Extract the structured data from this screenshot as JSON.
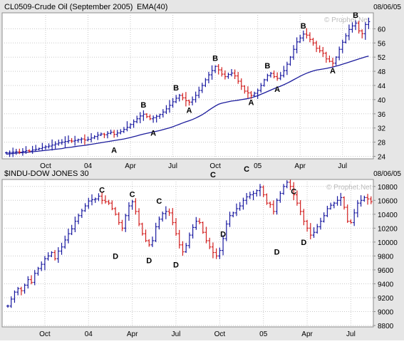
{
  "colors": {
    "background": "#e6e6e6",
    "plot_bg": "#ffffff",
    "grid": "#c8c8c8",
    "frame": "#8c8c8c",
    "up_bar": "#1a1aa0",
    "down_bar": "#d22020",
    "ema_line": "#1c1c9c",
    "watermark": "#bdbdbd",
    "text": "#000000"
  },
  "watermark": "© Prophet.Net",
  "chart_data": [
    {
      "type": "ohlc-bar",
      "title": "CL0509-Crude Oil (September 2005)",
      "indicator_label": "EMA(40)",
      "date_label": "08/06/05",
      "x_tick_labels": [
        "Oct",
        "04",
        "Apr",
        "Jul",
        "Oct",
        "05",
        "Apr",
        "Jul"
      ],
      "x_tick_index": [
        12,
        25,
        38,
        51,
        64,
        77,
        90,
        103
      ],
      "y_tick_labels": [
        "24",
        "28",
        "32",
        "36",
        "40",
        "44",
        "48",
        "52",
        "56",
        "60"
      ],
      "y_ticks": [
        24,
        28,
        32,
        36,
        40,
        44,
        48,
        52,
        56,
        60
      ],
      "ylim": [
        23.3,
        64.5
      ],
      "grid": true,
      "close": [
        25.0,
        25.1,
        25.2,
        25.3,
        25.2,
        25.4,
        25.6,
        25.5,
        25.8,
        26.0,
        26.2,
        26.5,
        26.7,
        26.9,
        27.2,
        27.5,
        27.8,
        28.0,
        28.2,
        28.4,
        28.3,
        28.5,
        28.7,
        28.9,
        28.6,
        28.8,
        29.2,
        29.6,
        30.0,
        30.3,
        30.1,
        30.5,
        30.8,
        30.2,
        30.6,
        31.0,
        31.6,
        32.2,
        33.0,
        33.8,
        34.6,
        35.4,
        35.9,
        35.2,
        34.6,
        34.9,
        35.3,
        35.8,
        36.5,
        37.4,
        38.4,
        39.4,
        40.4,
        41.2,
        40.5,
        39.7,
        39.3,
        40.0,
        41.2,
        42.6,
        44.0,
        45.6,
        47.0,
        48.2,
        49.4,
        48.4,
        47.2,
        46.5,
        47.1,
        47.5,
        46.7,
        45.2,
        43.8,
        42.4,
        41.9,
        41.2,
        41.8,
        42.6,
        44.0,
        45.6,
        46.8,
        47.4,
        46.5,
        46.0,
        46.8,
        48.2,
        50.0,
        52.0,
        54.2,
        56.3,
        57.4,
        58.5,
        58.2,
        57.0,
        56.0,
        54.5,
        53.8,
        53.1,
        51.5,
        50.8,
        50.3,
        52.0,
        54.2,
        56.2,
        58.0,
        59.8,
        60.8,
        61.6,
        59.4,
        58.6,
        61.2,
        62.0
      ],
      "ema": [
        24.6,
        24.7,
        24.8,
        24.9,
        25.0,
        25.05,
        25.1,
        25.2,
        25.3,
        25.4,
        25.5,
        25.6,
        25.7,
        25.8,
        25.9,
        26.0,
        26.1,
        26.2,
        26.4,
        26.5,
        26.6,
        26.75,
        26.9,
        27.0,
        27.1,
        27.25,
        27.4,
        27.55,
        27.7,
        27.85,
        28.0,
        28.15,
        28.3,
        28.45,
        28.6,
        28.75,
        28.9,
        29.1,
        29.3,
        29.55,
        29.8,
        30.05,
        30.3,
        30.5,
        30.7,
        30.9,
        31.1,
        31.3,
        31.55,
        31.8,
        32.05,
        32.35,
        32.7,
        33.05,
        33.4,
        33.75,
        34.05,
        34.4,
        34.8,
        35.25,
        35.75,
        36.35,
        37.0,
        37.6,
        38.2,
        38.7,
        39.0,
        39.2,
        39.4,
        39.6,
        39.7,
        39.85,
        40.0,
        40.15,
        40.3,
        40.55,
        40.8,
        41.1,
        41.5,
        41.9,
        42.3,
        42.7,
        43.1,
        43.45,
        43.8,
        44.2,
        44.65,
        45.1,
        45.6,
        46.1,
        46.6,
        47.05,
        47.45,
        47.8,
        48.1,
        48.35,
        48.5,
        48.65,
        48.8,
        49.0,
        49.2,
        49.45,
        49.7,
        50.0,
        50.3,
        50.6,
        50.9,
        51.2,
        51.5,
        51.75,
        52.05,
        52.3
      ],
      "annotations": [
        {
          "label": "A",
          "index": 33,
          "value": 27.0,
          "placement": "below"
        },
        {
          "label": "B",
          "index": 42,
          "value": 37.2,
          "placement": "above"
        },
        {
          "label": "A",
          "index": 45,
          "value": 31.8,
          "placement": "below"
        },
        {
          "label": "B",
          "index": 52,
          "value": 42.0,
          "placement": "above"
        },
        {
          "label": "A",
          "index": 56,
          "value": 38.3,
          "placement": "below"
        },
        {
          "label": "B",
          "index": 64,
          "value": 50.3,
          "placement": "above"
        },
        {
          "label": "A",
          "index": 75,
          "value": 40.5,
          "placement": "below"
        },
        {
          "label": "B",
          "index": 80,
          "value": 48.2,
          "placement": "above"
        },
        {
          "label": "A",
          "index": 83,
          "value": 44.2,
          "placement": "below"
        },
        {
          "label": "B",
          "index": 91,
          "value": 59.5,
          "placement": "above"
        },
        {
          "label": "A",
          "index": 100,
          "value": 49.4,
          "placement": "below"
        },
        {
          "label": "B",
          "index": 107,
          "value": 62.5,
          "placement": "above"
        }
      ]
    },
    {
      "type": "ohlc-bar",
      "title": "$INDU-DOW JONES 30",
      "date_label": "08/06/05",
      "x_tick_labels": [
        "Oct",
        "04",
        "Apr",
        "Jul",
        "Oct",
        "05",
        "Apr",
        "Jul"
      ],
      "x_tick_index": [
        11,
        24,
        37,
        50,
        63,
        76,
        89,
        102
      ],
      "y_tick_labels": [
        "8800",
        "9000",
        "9200",
        "9400",
        "9600",
        "9800",
        "10000",
        "10200",
        "10400",
        "10600",
        "10800"
      ],
      "y_ticks": [
        8800,
        9000,
        9200,
        9400,
        9600,
        9800,
        10000,
        10200,
        10400,
        10600,
        10800
      ],
      "ylim": [
        8780,
        10900
      ],
      "grid": true,
      "close": [
        9080,
        9180,
        9280,
        9330,
        9300,
        9380,
        9460,
        9420,
        9550,
        9620,
        9680,
        9760,
        9800,
        9850,
        9760,
        9870,
        9930,
        10030,
        10120,
        10190,
        10300,
        10380,
        10450,
        10520,
        10590,
        10610,
        10620,
        10660,
        10600,
        10580,
        10560,
        10480,
        10400,
        10280,
        10200,
        10380,
        10520,
        10580,
        10440,
        10260,
        10120,
        10020,
        9960,
        10020,
        10220,
        10330,
        10410,
        10440,
        10420,
        10280,
        10120,
        9960,
        9860,
        9950,
        10100,
        10210,
        10300,
        10280,
        10140,
        10020,
        9930,
        9850,
        9800,
        9880,
        10050,
        10260,
        10380,
        10420,
        10480,
        10520,
        10600,
        10650,
        10680,
        10700,
        10740,
        10790,
        10680,
        10560,
        10540,
        10440,
        10600,
        10700,
        10800,
        10860,
        10800,
        10680,
        10560,
        10440,
        10300,
        10200,
        10100,
        10140,
        10220,
        10300,
        10380,
        10480,
        10530,
        10560,
        10600,
        10640,
        10500,
        10300,
        10280,
        10420,
        10560,
        10600,
        10640,
        10620,
        10580
      ],
      "annotations": [
        {
          "label": "C",
          "index": 28,
          "value": 10680,
          "placement": "above"
        },
        {
          "label": "D",
          "index": 32,
          "value": 9860,
          "placement": "below"
        },
        {
          "label": "C",
          "index": 37,
          "value": 10620,
          "placement": "above"
        },
        {
          "label": "D",
          "index": 42,
          "value": 9800,
          "placement": "below"
        },
        {
          "label": "C",
          "index": 45,
          "value": 10520,
          "placement": "above"
        },
        {
          "label": "D",
          "index": 50,
          "value": 9740,
          "placement": "below"
        },
        {
          "label": "C",
          "index": 61,
          "value": 10900,
          "placement": "above"
        },
        {
          "label": "D",
          "index": 64,
          "value": 10180,
          "placement": "below"
        },
        {
          "label": "C",
          "index": 71,
          "value": 10980,
          "placement": "above"
        },
        {
          "label": "D",
          "index": 80,
          "value": 9920,
          "placement": "below"
        },
        {
          "label": "C",
          "index": 85,
          "value": 10660,
          "placement": "above"
        },
        {
          "label": "D",
          "index": 88,
          "value": 10060,
          "placement": "below"
        }
      ]
    }
  ]
}
